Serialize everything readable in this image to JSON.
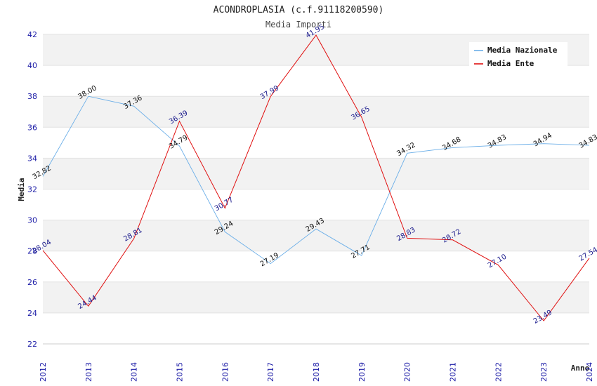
{
  "chart_data": {
    "type": "line",
    "title": "ACONDROPLASIA (c.f.91118200590)",
    "subtitle": "Media Importi",
    "xlabel": "Anno",
    "ylabel": "Media",
    "ylim": [
      22,
      42
    ],
    "yticks": [
      22,
      24,
      26,
      28,
      30,
      32,
      34,
      36,
      38,
      40,
      42
    ],
    "grid": true,
    "legend_position": "top-right",
    "categories": [
      "2012",
      "2013",
      "2014",
      "2015",
      "2016",
      "2017",
      "2018",
      "2019",
      "2020",
      "2021",
      "2022",
      "2023",
      "2024"
    ],
    "series": [
      {
        "name": "Media Nazionale",
        "color": "#6aaee8",
        "values": [
          32.82,
          38.0,
          37.36,
          34.79,
          29.24,
          27.19,
          29.43,
          27.71,
          34.32,
          34.68,
          34.83,
          34.94,
          34.83
        ],
        "labels": [
          "32.82",
          "38.00",
          "37.36",
          "34.79",
          "29.24",
          "27.19",
          "29.43",
          "27.71",
          "34.32",
          "34.68",
          "34.83",
          "34.94",
          "34.83"
        ]
      },
      {
        "name": "Media Ente",
        "color": "#e01010",
        "values": [
          28.04,
          24.44,
          28.81,
          36.39,
          30.77,
          37.99,
          41.95,
          36.65,
          28.83,
          28.72,
          27.1,
          23.49,
          27.54
        ],
        "labels": [
          "28.04",
          "24.44",
          "28.81",
          "36.39",
          "30.77",
          "37.99",
          "41.95",
          "36.65",
          "28.83",
          "28.72",
          "27.10",
          "23.49",
          "27.54"
        ]
      }
    ]
  }
}
